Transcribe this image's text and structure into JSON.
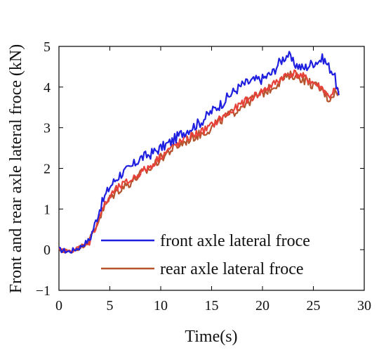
{
  "chart_data": {
    "type": "line",
    "title": "",
    "xlabel": "Time(s)",
    "ylabel": "Front and rear axle lateral froce (kN)",
    "xlim": [
      0,
      30
    ],
    "ylim": [
      -1,
      5
    ],
    "xticks": [
      0,
      5,
      10,
      15,
      20,
      25,
      30
    ],
    "yticks": [
      -1,
      0,
      1,
      2,
      3,
      4,
      5
    ],
    "grid": false,
    "legend_position": "bottom-right",
    "series": [
      {
        "name": "front axle lateral froce",
        "color": "#1f1fe0",
        "x": [
          0,
          1,
          2,
          3,
          3.5,
          4,
          4.5,
          5,
          5.5,
          6,
          7,
          8,
          9,
          10,
          11,
          12,
          13,
          14,
          15,
          16,
          17,
          18,
          19,
          20,
          21,
          21.5,
          22,
          22.5,
          23,
          24,
          25,
          26,
          26.5,
          27,
          27.5
        ],
        "y": [
          0.0,
          -0.05,
          0.05,
          0.25,
          0.6,
          1.0,
          1.3,
          1.55,
          1.7,
          1.85,
          2.0,
          2.25,
          2.35,
          2.5,
          2.65,
          2.85,
          3.0,
          3.15,
          3.4,
          3.6,
          3.85,
          4.05,
          4.15,
          4.2,
          4.35,
          4.55,
          4.7,
          4.8,
          4.6,
          4.45,
          4.6,
          4.7,
          4.5,
          4.35,
          3.8
        ]
      },
      {
        "name": "rear axle lateral froce",
        "color": "#b5532d",
        "x": [
          0,
          1,
          2,
          3,
          3.5,
          4,
          4.5,
          5,
          5.5,
          6,
          7,
          8,
          9,
          10,
          11,
          12,
          13,
          14,
          15,
          16,
          17,
          18,
          19,
          20,
          21,
          22,
          23,
          24,
          25,
          26,
          26.5,
          27,
          27.5
        ],
        "y": [
          0.0,
          -0.05,
          0.05,
          0.2,
          0.5,
          0.8,
          1.05,
          1.25,
          1.4,
          1.5,
          1.65,
          1.85,
          2.0,
          2.25,
          2.45,
          2.6,
          2.75,
          2.85,
          3.0,
          3.2,
          3.35,
          3.55,
          3.7,
          3.85,
          4.0,
          4.2,
          4.3,
          4.2,
          4.05,
          3.9,
          3.7,
          3.85,
          3.9
        ]
      },
      {
        "name": "",
        "color": "#e8413a",
        "x": [
          0,
          1,
          2,
          3,
          3.5,
          4,
          4.5,
          5,
          5.5,
          6,
          7,
          8,
          9,
          10,
          11,
          12,
          13,
          14,
          15,
          16,
          17,
          18,
          19,
          20,
          21,
          22,
          23,
          24,
          25,
          26,
          26.5,
          27,
          27.5
        ],
        "y": [
          0.0,
          -0.05,
          0.05,
          0.2,
          0.5,
          0.85,
          1.1,
          1.3,
          1.45,
          1.55,
          1.7,
          1.9,
          2.05,
          2.3,
          2.5,
          2.65,
          2.8,
          2.9,
          3.05,
          3.25,
          3.4,
          3.6,
          3.75,
          3.9,
          4.05,
          4.25,
          4.35,
          4.25,
          4.1,
          3.95,
          3.75,
          3.9,
          3.95
        ]
      }
    ]
  }
}
